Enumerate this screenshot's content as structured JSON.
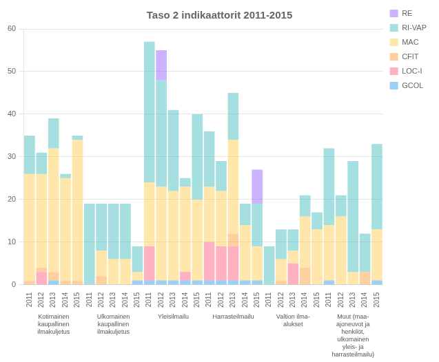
{
  "chart_data": {
    "type": "bar",
    "title": "Taso 2 indikaattorit 2011-2015",
    "categories": [
      "2011",
      "2012",
      "2013",
      "2014",
      "2015",
      "2011",
      "2012",
      "2013",
      "2014",
      "2015",
      "2011",
      "2012",
      "2013",
      "2014",
      "2015",
      "2011",
      "2012",
      "2013",
      "2014",
      "2015",
      "2011",
      "2012",
      "2013",
      "2014",
      "2015",
      "2011",
      "2012",
      "2013",
      "2014",
      "2015"
    ],
    "annotations": [
      "Kotimainen\nkaupallinen\nilmakuljetus",
      "Ulkomainen\nkaupallinen\nilmakuljetus",
      "Yleisilmailu",
      "Harrasteilmailu",
      "Valtion ilma-\nalukset",
      "Muut (maa-\najoneuvot ja\nhenkilöt,\nulkomainen\nyleis- ja\nharrasteilmailu)"
    ],
    "series": [
      {
        "name": "GCOL",
        "values": [
          0,
          0,
          1,
          0,
          0,
          0,
          0,
          0,
          0,
          1,
          1,
          1,
          1,
          1,
          1,
          1,
          1,
          1,
          1,
          1,
          0,
          0,
          0,
          0,
          0,
          1,
          0,
          0,
          0,
          1
        ]
      },
      {
        "name": "LOC-I",
        "values": [
          0,
          3,
          0,
          0,
          0,
          0,
          0,
          0,
          0,
          0,
          8,
          0,
          0,
          2,
          0,
          9,
          8,
          8,
          0,
          0,
          0,
          0,
          5,
          0,
          0,
          0,
          0,
          0,
          0,
          0
        ]
      },
      {
        "name": "CFIT",
        "values": [
          1,
          1,
          2,
          1,
          1,
          0,
          2,
          0,
          0,
          0,
          0,
          0,
          0,
          0,
          0,
          0,
          0,
          3,
          0,
          0,
          0,
          1,
          0,
          4,
          0,
          0,
          0,
          0,
          3,
          0
        ]
      },
      {
        "name": "MAC",
        "values": [
          25,
          22,
          29,
          24,
          33,
          0,
          6,
          6,
          6,
          2,
          15,
          22,
          21,
          20,
          19,
          13,
          13,
          22,
          13,
          8,
          0,
          5,
          3,
          12,
          13,
          13,
          16,
          3,
          0,
          12
        ]
      },
      {
        "name": "RI-VAP",
        "values": [
          9,
          5,
          7,
          1,
          1,
          19,
          11,
          13,
          13,
          6,
          33,
          25,
          19,
          2,
          20,
          13,
          7,
          11,
          5,
          10,
          9,
          7,
          5,
          5,
          4,
          18,
          5,
          26,
          9,
          20
        ]
      },
      {
        "name": "RE",
        "values": [
          0,
          0,
          0,
          0,
          0,
          0,
          0,
          0,
          0,
          0,
          0,
          7,
          0,
          0,
          0,
          0,
          0,
          0,
          0,
          8,
          0,
          0,
          0,
          0,
          0,
          0,
          0,
          0,
          0,
          0
        ]
      }
    ],
    "stacked": true,
    "ylim": [
      0,
      60
    ],
    "yticks": [
      0,
      10,
      20,
      30,
      40,
      50,
      60
    ],
    "grid": true,
    "legend": "right"
  }
}
